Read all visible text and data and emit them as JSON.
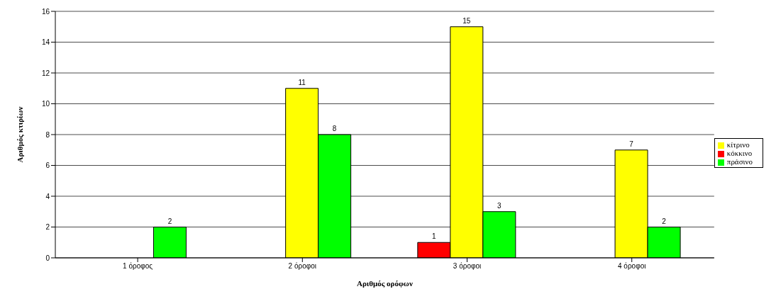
{
  "chart_data": {
    "type": "bar",
    "xlabel": "Αριθμός ορόφων",
    "ylabel": "Αριθμός κτιρίων",
    "categories": [
      "1 όροφος",
      "2 όροφοι",
      "3 όροφοι",
      "4 όροφοι"
    ],
    "series": [
      {
        "name": "κόκκινο",
        "color": "#ff0000",
        "values": [
          null,
          null,
          1,
          null
        ]
      },
      {
        "name": "κίτρινο",
        "color": "#ffff00",
        "values": [
          null,
          11,
          15,
          7
        ]
      },
      {
        "name": "πράσινο",
        "color": "#00ff00",
        "values": [
          2,
          8,
          3,
          2
        ]
      }
    ],
    "ylim": [
      0,
      16
    ],
    "yticks": [
      0,
      2,
      4,
      6,
      8,
      10,
      12,
      14,
      16
    ],
    "grid": "y",
    "legend": "right",
    "data_labels": true
  }
}
